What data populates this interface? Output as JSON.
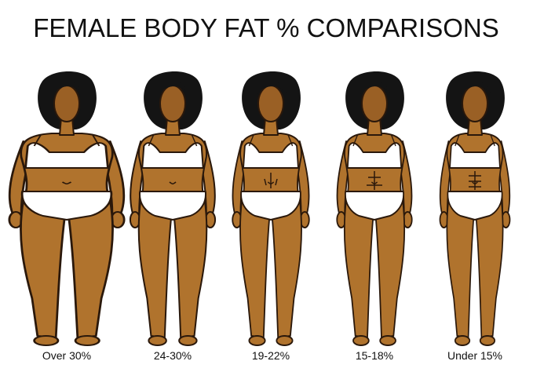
{
  "title": "FEMALE BODY FAT % COMPARISONS",
  "figures": [
    {
      "label": "Over 30%"
    },
    {
      "label": "24-30%"
    },
    {
      "label": "19-22%"
    },
    {
      "label": "15-18%"
    },
    {
      "label": "Under 15%"
    }
  ]
}
